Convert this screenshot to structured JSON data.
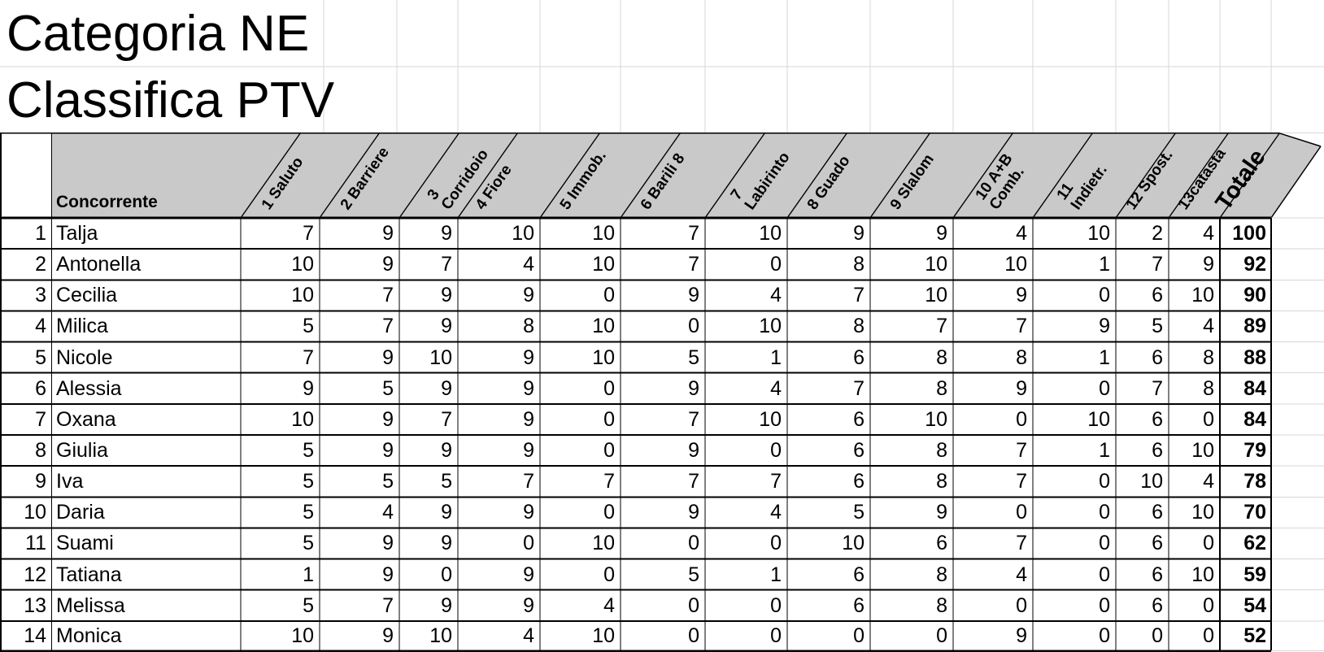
{
  "titles": {
    "line1": "Categoria NE",
    "line2": "Classifica PTV"
  },
  "header": {
    "concorrente": "Concorrente",
    "columns": [
      {
        "l1": "1 Saluto",
        "l2": ""
      },
      {
        "l1": "2 Barriere",
        "l2": ""
      },
      {
        "l1": "3",
        "l2": "Corridoio"
      },
      {
        "l1": "4 Fiore",
        "l2": ""
      },
      {
        "l1": "5 Immob.",
        "l2": ""
      },
      {
        "l1": "6 Barili 8",
        "l2": ""
      },
      {
        "l1": "7",
        "l2": "Labirinto"
      },
      {
        "l1": "8 Guado",
        "l2": ""
      },
      {
        "l1": "9 Slalom",
        "l2": ""
      },
      {
        "l1": "10 A+B",
        "l2": "Comb."
      },
      {
        "l1": "11",
        "l2": "Indietr."
      },
      {
        "l1": "12 Spost.",
        "l2": ""
      },
      {
        "l1": "13catasta",
        "l2": ""
      }
    ],
    "totale": "Totale"
  },
  "rows": [
    {
      "rank": "1",
      "name": "Talja",
      "scores": [
        7,
        9,
        9,
        10,
        10,
        7,
        10,
        9,
        9,
        4,
        10,
        2,
        4
      ],
      "total": "100"
    },
    {
      "rank": "2",
      "name": "Antonella",
      "scores": [
        10,
        9,
        7,
        4,
        10,
        7,
        0,
        8,
        10,
        10,
        1,
        7,
        9
      ],
      "total": "92"
    },
    {
      "rank": "3",
      "name": "Cecilia",
      "scores": [
        10,
        7,
        9,
        9,
        0,
        9,
        4,
        7,
        10,
        9,
        0,
        6,
        10
      ],
      "total": "90"
    },
    {
      "rank": "4",
      "name": "Milica",
      "scores": [
        5,
        7,
        9,
        8,
        10,
        0,
        10,
        8,
        7,
        7,
        9,
        5,
        4
      ],
      "total": "89"
    },
    {
      "rank": "5",
      "name": "Nicole",
      "scores": [
        7,
        9,
        10,
        9,
        10,
        5,
        1,
        6,
        8,
        8,
        1,
        6,
        8
      ],
      "total": "88"
    },
    {
      "rank": "6",
      "name": "Alessia",
      "scores": [
        9,
        5,
        9,
        9,
        0,
        9,
        4,
        7,
        8,
        9,
        0,
        7,
        8
      ],
      "total": "84"
    },
    {
      "rank": "7",
      "name": "Oxana",
      "scores": [
        10,
        9,
        7,
        9,
        0,
        7,
        10,
        6,
        10,
        0,
        10,
        6,
        0
      ],
      "total": "84"
    },
    {
      "rank": "8",
      "name": "Giulia",
      "scores": [
        5,
        9,
        9,
        9,
        0,
        9,
        0,
        6,
        8,
        7,
        1,
        6,
        10
      ],
      "total": "79"
    },
    {
      "rank": "9",
      "name": "Iva",
      "scores": [
        5,
        5,
        5,
        7,
        7,
        7,
        7,
        6,
        8,
        7,
        0,
        10,
        4
      ],
      "total": "78"
    },
    {
      "rank": "10",
      "name": "Daria",
      "scores": [
        5,
        4,
        9,
        9,
        0,
        9,
        4,
        5,
        9,
        0,
        0,
        6,
        10
      ],
      "total": "70"
    },
    {
      "rank": "11",
      "name": "Suami",
      "scores": [
        5,
        9,
        9,
        0,
        10,
        0,
        0,
        10,
        6,
        7,
        0,
        6,
        0
      ],
      "total": "62"
    },
    {
      "rank": "12",
      "name": "Tatiana",
      "scores": [
        1,
        9,
        0,
        9,
        0,
        5,
        1,
        6,
        8,
        4,
        0,
        6,
        10
      ],
      "total": "59"
    },
    {
      "rank": "13",
      "name": "Melissa",
      "scores": [
        5,
        7,
        9,
        9,
        4,
        0,
        0,
        6,
        8,
        0,
        0,
        6,
        0
      ],
      "total": "54"
    },
    {
      "rank": "14",
      "name": "Monica",
      "scores": [
        10,
        9,
        10,
        4,
        10,
        0,
        0,
        0,
        0,
        9,
        0,
        0,
        0
      ],
      "total": "52"
    }
  ],
  "colors": {
    "header_fill": "#c9c9c9",
    "grid_faint": "#d7d7d7",
    "border": "#000000",
    "text": "#000000",
    "background": "#ffffff"
  }
}
